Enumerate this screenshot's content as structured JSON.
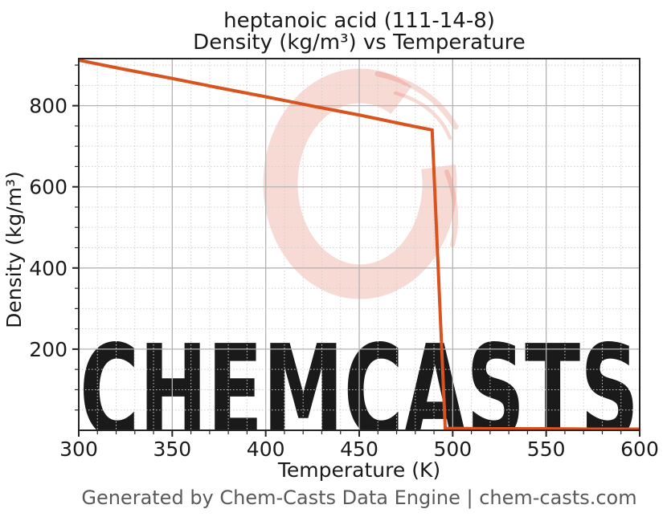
{
  "chart_data": {
    "type": "line",
    "title_line1": "heptanoic acid (111-14-8)",
    "title_line2": "Density (kg/m³) vs Temperature",
    "xlabel": "Temperature (K)",
    "ylabel": "Density (kg/m³)",
    "xlim": [
      300,
      600
    ],
    "ylim": [
      0,
      916
    ],
    "x_major_ticks": [
      300,
      350,
      400,
      450,
      500,
      550,
      600
    ],
    "x_major_step": 50,
    "x_minor_step": 10,
    "y_major_ticks": [
      200,
      400,
      600,
      800
    ],
    "y_major_step": 200,
    "y_minor_step": 50,
    "grid": {
      "major": "solid",
      "minor": "dotted"
    },
    "legend": "none",
    "series": [
      {
        "name": "Density (kg/m³)",
        "color": "#d9531e",
        "x": [
          300,
          325,
          350,
          375,
          400,
          425,
          450,
          475,
          489,
          496,
          520,
          550,
          575,
          600
        ],
        "y": [
          912,
          889,
          867,
          844,
          822,
          799,
          777,
          753,
          740,
          5,
          4,
          4,
          3,
          3
        ]
      }
    ]
  },
  "watermark": {
    "text": "CHEMCASTS"
  },
  "footer": {
    "text": "Generated by Chem-Casts Data Engine | chem-casts.com"
  },
  "colors": {
    "line": "#d9531e",
    "watermark": "rgba(222,70,44,0.20)",
    "grid_major": "#b3b3b3",
    "grid_minor": "#cfcfcf",
    "spine": "#262626",
    "tick": "#262626",
    "footer_text": "#595959"
  }
}
